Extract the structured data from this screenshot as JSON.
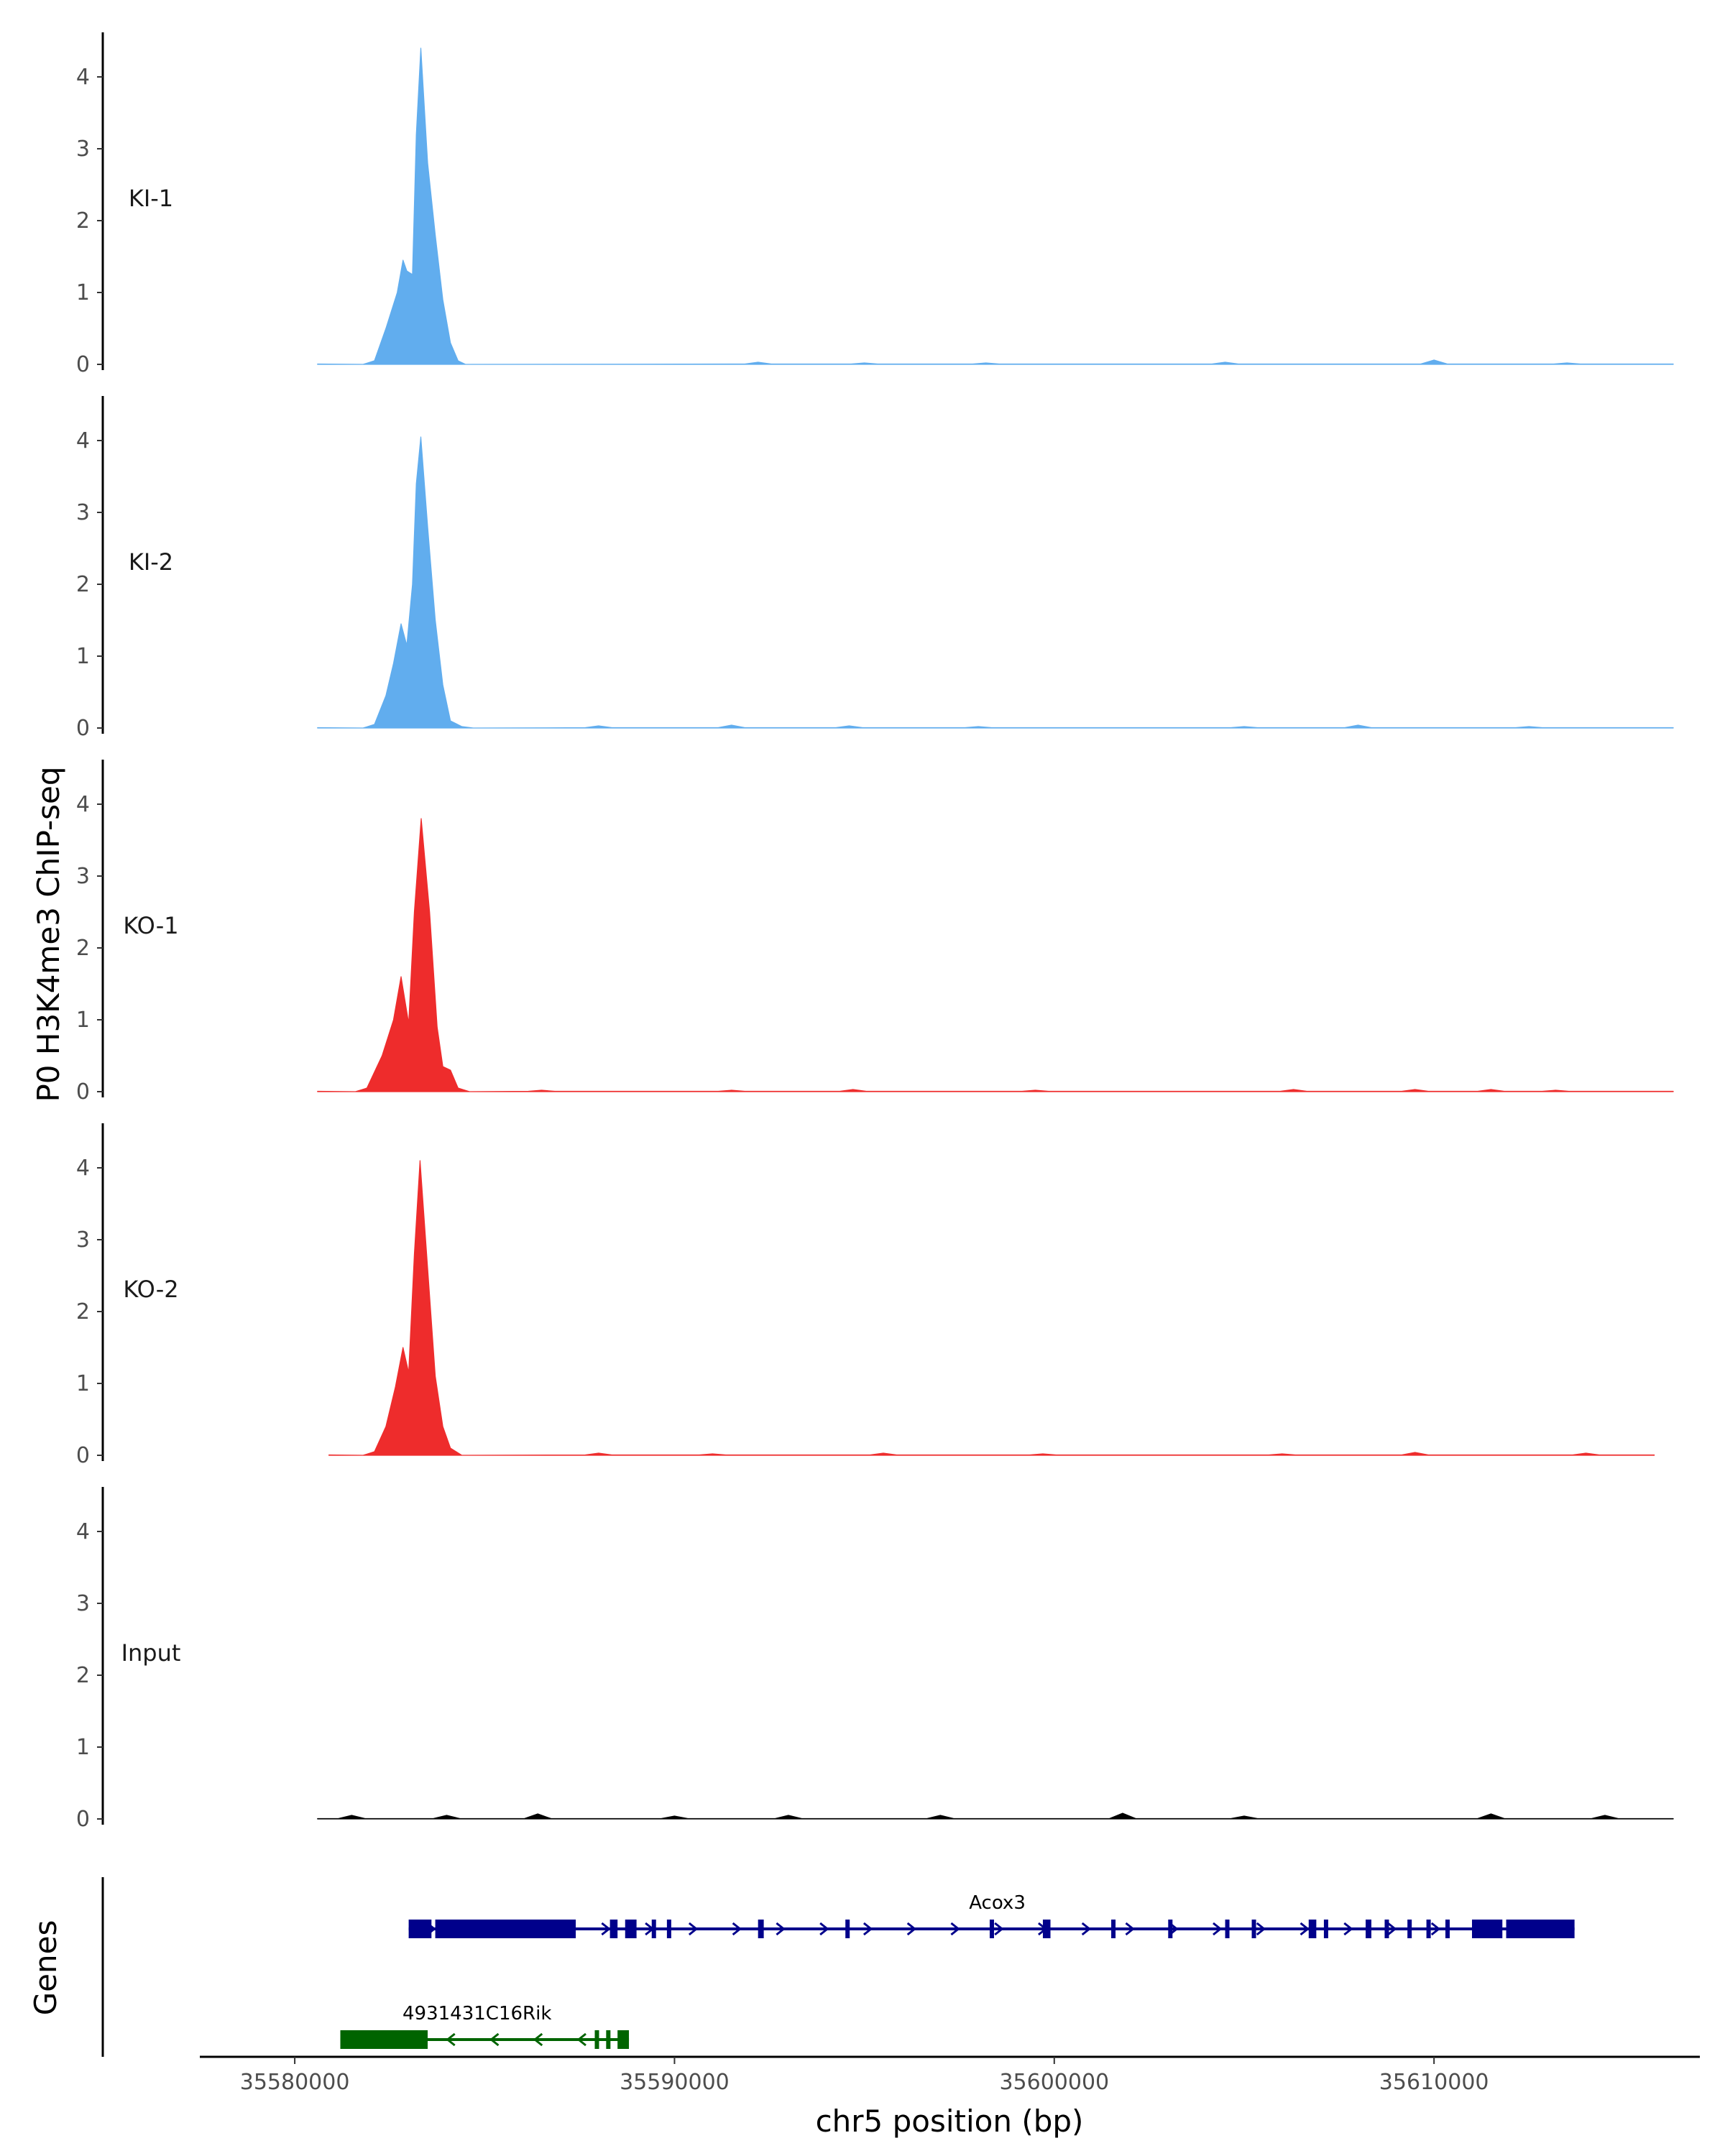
{
  "chart_data": {
    "type": "area",
    "title": "",
    "ylabel": "P0 H3K4me3 ChIP-seq",
    "xlabel": "chr5 position (bp)",
    "chrom": "chr5",
    "xlim": [
      35577500,
      35617000
    ],
    "ylim": [
      0,
      4.5
    ],
    "yticks": [
      0,
      1,
      2,
      3,
      4
    ],
    "xticks": [
      35580000,
      35590000,
      35600000,
      35610000
    ],
    "xtick_labels": [
      "35580000",
      "35590000",
      "35600000",
      "35610000"
    ],
    "colors": {
      "KI": "#61ADEE",
      "KO": "#EE2C2C",
      "Input": "#000000"
    },
    "tracks": [
      {
        "name": "KI-1",
        "color": "#61ADEE",
        "data_start": 35580600,
        "data_end": 35616300,
        "peak": [
          [
            35581800,
            0
          ],
          [
            35582100,
            0.05
          ],
          [
            35582400,
            0.5
          ],
          [
            35582700,
            1.0
          ],
          [
            35582850,
            1.45
          ],
          [
            35582950,
            1.3
          ],
          [
            35583100,
            1.25
          ],
          [
            35583200,
            3.2
          ],
          [
            35583320,
            4.4
          ],
          [
            35583500,
            2.8
          ],
          [
            35583700,
            1.8
          ],
          [
            35583900,
            0.9
          ],
          [
            35584100,
            0.3
          ],
          [
            35584300,
            0.05
          ],
          [
            35584500,
            0
          ]
        ],
        "bumps": [
          [
            35592200,
            0.03
          ],
          [
            35595000,
            0.02
          ],
          [
            35598200,
            0.02
          ],
          [
            35604500,
            0.03
          ],
          [
            35610000,
            0.06
          ],
          [
            35613500,
            0.02
          ]
        ]
      },
      {
        "name": "KI-2",
        "color": "#61ADEE",
        "data_start": 35580600,
        "data_end": 35616300,
        "peak": [
          [
            35581800,
            0
          ],
          [
            35582100,
            0.05
          ],
          [
            35582400,
            0.45
          ],
          [
            35582600,
            0.9
          ],
          [
            35582800,
            1.45
          ],
          [
            35582950,
            1.15
          ],
          [
            35583100,
            2.0
          ],
          [
            35583200,
            3.4
          ],
          [
            35583320,
            4.05
          ],
          [
            35583500,
            2.8
          ],
          [
            35583700,
            1.5
          ],
          [
            35583900,
            0.6
          ],
          [
            35584100,
            0.1
          ],
          [
            35584400,
            0.02
          ],
          [
            35584700,
            0
          ]
        ],
        "bumps": [
          [
            35588000,
            0.03
          ],
          [
            35591500,
            0.04
          ],
          [
            35594600,
            0.03
          ],
          [
            35598000,
            0.02
          ],
          [
            35605000,
            0.02
          ],
          [
            35608000,
            0.04
          ],
          [
            35612500,
            0.02
          ]
        ]
      },
      {
        "name": "KO-1",
        "color": "#EE2C2C",
        "data_start": 35580600,
        "data_end": 35616300,
        "peak": [
          [
            35581600,
            0
          ],
          [
            35581900,
            0.05
          ],
          [
            35582300,
            0.5
          ],
          [
            35582600,
            1.0
          ],
          [
            35582800,
            1.6
          ],
          [
            35583000,
            0.95
          ],
          [
            35583150,
            2.5
          ],
          [
            35583330,
            3.8
          ],
          [
            35583550,
            2.5
          ],
          [
            35583750,
            0.9
          ],
          [
            35583900,
            0.35
          ],
          [
            35584100,
            0.3
          ],
          [
            35584300,
            0.05
          ],
          [
            35584600,
            0
          ]
        ],
        "bumps": [
          [
            35586500,
            0.02
          ],
          [
            35591500,
            0.02
          ],
          [
            35594700,
            0.03
          ],
          [
            35599500,
            0.02
          ],
          [
            35606300,
            0.03
          ],
          [
            35609500,
            0.03
          ],
          [
            35611500,
            0.03
          ],
          [
            35613200,
            0.02
          ]
        ]
      },
      {
        "name": "KO-2",
        "color": "#EE2C2C",
        "data_start": 35580900,
        "data_end": 35615800,
        "peak": [
          [
            35581800,
            0
          ],
          [
            35582100,
            0.05
          ],
          [
            35582400,
            0.4
          ],
          [
            35582650,
            0.95
          ],
          [
            35582850,
            1.5
          ],
          [
            35583000,
            1.15
          ],
          [
            35583150,
            2.8
          ],
          [
            35583300,
            4.1
          ],
          [
            35583500,
            2.6
          ],
          [
            35583700,
            1.1
          ],
          [
            35583900,
            0.4
          ],
          [
            35584100,
            0.1
          ],
          [
            35584400,
            0
          ]
        ],
        "bumps": [
          [
            35588000,
            0.03
          ],
          [
            35591000,
            0.02
          ],
          [
            35595500,
            0.03
          ],
          [
            35599700,
            0.02
          ],
          [
            35606000,
            0.02
          ],
          [
            35609500,
            0.04
          ],
          [
            35614000,
            0.03
          ]
        ]
      },
      {
        "name": "Input",
        "color": "#000000",
        "data_start": 35580600,
        "data_end": 35616300,
        "peak": [],
        "bumps": [
          [
            35581500,
            0.05
          ],
          [
            35584000,
            0.05
          ],
          [
            35586400,
            0.07
          ],
          [
            35590000,
            0.04
          ],
          [
            35593000,
            0.05
          ],
          [
            35597000,
            0.05
          ],
          [
            35601800,
            0.08
          ],
          [
            35605000,
            0.04
          ],
          [
            35611500,
            0.07
          ],
          [
            35614500,
            0.05
          ]
        ]
      }
    ],
    "genes_label": "Genes",
    "genes": [
      {
        "name": "Acox3",
        "color": "#00008B",
        "strand": "+",
        "start": 35583000,
        "end": 35613700,
        "row": 0,
        "exons": [
          [
            35583000,
            35583600
          ],
          [
            35583700,
            35587400
          ],
          [
            35588300,
            35588500
          ],
          [
            35588700,
            35589000
          ],
          [
            35589400,
            35589500
          ],
          [
            35589800,
            35589900
          ],
          [
            35592200,
            35592350
          ],
          [
            35594500,
            35594600
          ],
          [
            35598300,
            35598400
          ],
          [
            35599700,
            35599900
          ],
          [
            35601500,
            35601600
          ],
          [
            35603000,
            35603100
          ],
          [
            35604500,
            35604600
          ],
          [
            35605200,
            35605300
          ],
          [
            35606700,
            35606900
          ],
          [
            35607100,
            35607200
          ],
          [
            35608200,
            35608350
          ],
          [
            35608700,
            35608800
          ],
          [
            35609300,
            35609400
          ],
          [
            35609800,
            35609900
          ],
          [
            35610300,
            35610400
          ],
          [
            35611000,
            35611800
          ],
          [
            35611900,
            35613700
          ]
        ]
      },
      {
        "name": "4931431C16Rik",
        "color": "#006400",
        "strand": "-",
        "start": 35581200,
        "end": 35588800,
        "row": 1,
        "exons": [
          [
            35581200,
            35583500
          ],
          [
            35587900,
            35588000
          ],
          [
            35588200,
            35588300
          ],
          [
            35588500,
            35588800
          ]
        ]
      }
    ]
  }
}
